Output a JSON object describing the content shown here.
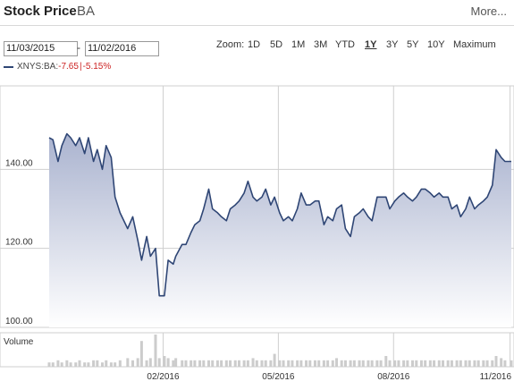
{
  "header": {
    "title": "Stock Price",
    "ticker": "BA",
    "more_label": "More..."
  },
  "date_range": {
    "start": "11/03/2015",
    "separator": "-",
    "end": "11/02/2016"
  },
  "zoom": {
    "label": "Zoom:",
    "options": [
      "1D",
      "5D",
      "1M",
      "3M",
      "YTD",
      "1Y",
      "3Y",
      "5Y",
      "10Y",
      "Maximum"
    ],
    "active": "1Y"
  },
  "legend": {
    "symbol": "XNYS:BA:",
    "change": "-7.65",
    "separator": "|",
    "change_pct": "-5.15%"
  },
  "volume_label": "Volume",
  "colors": {
    "line": "#2f4675",
    "fill_top": "#aab3cf",
    "fill_bottom": "#ffffff",
    "grid": "#cfcfcf",
    "volume_bars": "#cccccc",
    "negative": "#cc2222"
  },
  "chart_data": {
    "type": "area",
    "y_ticks": [
      "100.00",
      "120.00",
      "140.00"
    ],
    "y_tick_values": [
      100,
      120,
      140
    ],
    "ylim": [
      100,
      160
    ],
    "x_ticks": [
      "02/2016",
      "05/2016",
      "08/2016",
      "11/2016"
    ],
    "x_tick_dates": [
      "2016-02-01",
      "2016-05-02",
      "2016-08-01",
      "2016-11-01"
    ],
    "x_range": [
      "2015-11-03",
      "2016-11-02"
    ],
    "grid": true,
    "series": [
      {
        "x": [
          "2015-11-03",
          "2015-11-06",
          "2015-11-10",
          "2015-11-13",
          "2015-11-17",
          "2015-11-20",
          "2015-11-24",
          "2015-11-27",
          "2015-12-01",
          "2015-12-04",
          "2015-12-08",
          "2015-12-11",
          "2015-12-15",
          "2015-12-18",
          "2015-12-22",
          "2015-12-25",
          "2015-12-29",
          "2016-01-04",
          "2016-01-08",
          "2016-01-12",
          "2016-01-15",
          "2016-01-19",
          "2016-01-22",
          "2016-01-26",
          "2016-01-29",
          "2016-02-02",
          "2016-02-05",
          "2016-02-09",
          "2016-02-11",
          "2016-02-16",
          "2016-02-19",
          "2016-02-23",
          "2016-02-26",
          "2016-03-01",
          "2016-03-04",
          "2016-03-08",
          "2016-03-11",
          "2016-03-15",
          "2016-03-18",
          "2016-03-22",
          "2016-03-25",
          "2016-03-29",
          "2016-04-01",
          "2016-04-05",
          "2016-04-08",
          "2016-04-12",
          "2016-04-15",
          "2016-04-19",
          "2016-04-22",
          "2016-04-26",
          "2016-04-29",
          "2016-05-03",
          "2016-05-06",
          "2016-05-10",
          "2016-05-13",
          "2016-05-17",
          "2016-05-20",
          "2016-05-24",
          "2016-05-27",
          "2016-05-31",
          "2016-06-03",
          "2016-06-07",
          "2016-06-10",
          "2016-06-14",
          "2016-06-17",
          "2016-06-21",
          "2016-06-24",
          "2016-06-28",
          "2016-07-01",
          "2016-07-05",
          "2016-07-08",
          "2016-07-12",
          "2016-07-15",
          "2016-07-19",
          "2016-07-22",
          "2016-07-26",
          "2016-07-29",
          "2016-08-02",
          "2016-08-05",
          "2016-08-09",
          "2016-08-12",
          "2016-08-16",
          "2016-08-19",
          "2016-08-23",
          "2016-08-26",
          "2016-08-30",
          "2016-09-02",
          "2016-09-06",
          "2016-09-09",
          "2016-09-13",
          "2016-09-16",
          "2016-09-20",
          "2016-09-23",
          "2016-09-27",
          "2016-09-30",
          "2016-10-04",
          "2016-10-07",
          "2016-10-11",
          "2016-10-14",
          "2016-10-18",
          "2016-10-21",
          "2016-10-25",
          "2016-10-28",
          "2016-11-02"
        ],
        "values": [
          148,
          147.5,
          142,
          146,
          149,
          148,
          146,
          148,
          144,
          148,
          142,
          145,
          140,
          146,
          143,
          133,
          129,
          125,
          128,
          122,
          117,
          123,
          118,
          120,
          108,
          108,
          117,
          116,
          118,
          121,
          121,
          124,
          126,
          127,
          130,
          135,
          130,
          129,
          128,
          127,
          130,
          131,
          132,
          134,
          137,
          133,
          132,
          133,
          135,
          131,
          133,
          129,
          127,
          128,
          127,
          130,
          134,
          131,
          131,
          132,
          132,
          126,
          128,
          127,
          130,
          131,
          125,
          123,
          128,
          129,
          130,
          128,
          127,
          133,
          133,
          133,
          130,
          132,
          133,
          134,
          133,
          132,
          133,
          135,
          135,
          134,
          133,
          134,
          133,
          133,
          130,
          131,
          128,
          130,
          133,
          130,
          131,
          132,
          133,
          136,
          145,
          143,
          142,
          142
        ]
      }
    ],
    "volume": [
      2,
      2,
      3,
      2,
      3,
      2,
      2,
      3,
      2,
      2,
      3,
      3,
      2,
      3,
      2,
      2,
      3,
      4,
      3,
      4,
      12,
      3,
      4,
      15,
      4,
      5,
      4,
      3,
      4,
      3,
      3,
      3,
      3,
      3,
      3,
      3,
      3,
      3,
      3,
      3,
      3,
      3,
      3,
      3,
      3,
      4,
      3,
      3,
      3,
      3,
      6,
      3,
      3,
      3,
      3,
      3,
      3,
      3,
      3,
      3,
      3,
      3,
      3,
      3,
      4,
      3,
      3,
      3,
      3,
      3,
      3,
      3,
      3,
      3,
      3,
      5,
      3,
      3,
      3,
      3,
      3,
      3,
      3,
      3,
      3,
      3,
      3,
      3,
      3,
      3,
      3,
      3,
      3,
      3,
      3,
      3,
      3,
      3,
      3,
      3,
      5,
      4,
      3,
      3
    ]
  }
}
